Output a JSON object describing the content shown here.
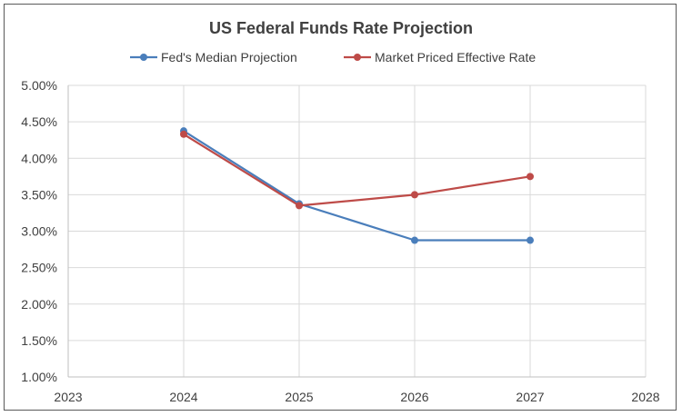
{
  "chart_data": {
    "type": "line",
    "title": "US Federal Funds Rate Projection",
    "xlabel": "",
    "ylabel": "",
    "xlim": [
      2023,
      2028
    ],
    "ylim": [
      1.0,
      5.0
    ],
    "x_ticks": [
      "2023",
      "2024",
      "2025",
      "2026",
      "2027",
      "2028"
    ],
    "y_ticks": [
      "1.00%",
      "1.50%",
      "2.00%",
      "2.50%",
      "3.00%",
      "3.50%",
      "4.00%",
      "4.50%",
      "5.00%"
    ],
    "grid": "vertical and horizontal",
    "legend_position": "top",
    "series": [
      {
        "name": "Fed's Median Projection",
        "color": "#4A7EBB",
        "x": [
          2024,
          2025,
          2026,
          2027
        ],
        "y": [
          4.375,
          3.375,
          2.875,
          2.875
        ]
      },
      {
        "name": "Market Priced Effective Rate",
        "color": "#BE4B48",
        "x": [
          2024,
          2025,
          2026,
          2027
        ],
        "y": [
          4.33,
          3.35,
          3.5,
          3.75
        ]
      }
    ]
  }
}
